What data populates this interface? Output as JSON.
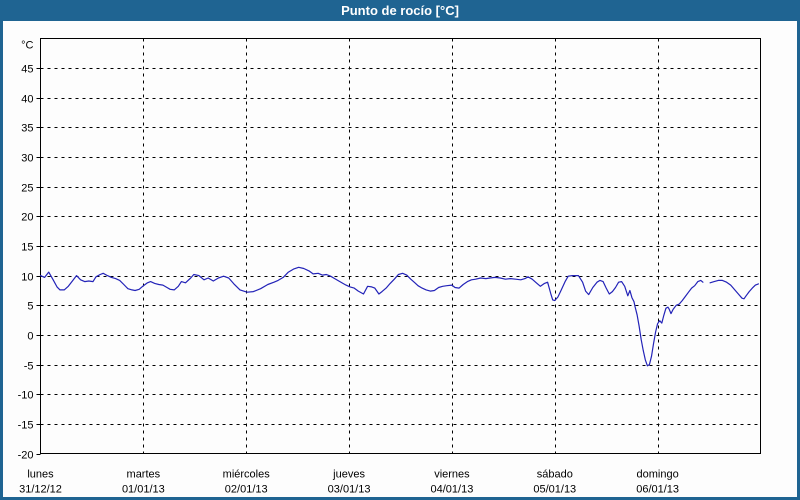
{
  "title_bar": {
    "title": "Punto de rocío [°C]",
    "bg_color": "#1f6492",
    "text_color": "#ffffff"
  },
  "chart_data": {
    "type": "line",
    "title": "Punto de rocío [°C]",
    "grid": {
      "style": "dashed",
      "color": "#000000",
      "visible": true
    },
    "legend": "none",
    "y_axis": {
      "unit_label": "°C",
      "min": -20,
      "max": 50,
      "tick_step": 5,
      "tick_labels": [
        45,
        40,
        35,
        30,
        25,
        20,
        15,
        10,
        5,
        0,
        -5,
        -10,
        -15,
        -20
      ]
    },
    "x_axis": {
      "span_days": 7,
      "days": [
        {
          "name": "lunes",
          "date": "31/12/12"
        },
        {
          "name": "martes",
          "date": "01/01/13"
        },
        {
          "name": "miércoles",
          "date": "02/01/13"
        },
        {
          "name": "jueves",
          "date": "03/01/13"
        },
        {
          "name": "viernes",
          "date": "04/01/13"
        },
        {
          "name": "sábado",
          "date": "05/01/13"
        },
        {
          "name": "domingo",
          "date": "06/01/13"
        }
      ]
    },
    "series": [
      {
        "name": "Punto de rocío",
        "unit": "°C",
        "color": "#2323b8",
        "x_unit": "days since 31/12/12 00:00",
        "segments": [
          [
            [
              0.0,
              10.0
            ],
            [
              0.04,
              9.7
            ],
            [
              0.08,
              10.6
            ],
            [
              0.12,
              9.4
            ],
            [
              0.16,
              8.1
            ],
            [
              0.19,
              7.6
            ],
            [
              0.23,
              7.6
            ],
            [
              0.27,
              8.2
            ],
            [
              0.31,
              9.1
            ],
            [
              0.35,
              10.0
            ],
            [
              0.39,
              9.3
            ],
            [
              0.43,
              9.0
            ],
            [
              0.47,
              9.1
            ],
            [
              0.51,
              9.0
            ],
            [
              0.54,
              9.8
            ],
            [
              0.58,
              10.2
            ],
            [
              0.61,
              10.4
            ],
            [
              0.65,
              10.0
            ],
            [
              0.69,
              9.7
            ],
            [
              0.73,
              9.5
            ],
            [
              0.77,
              9.2
            ],
            [
              0.81,
              8.5
            ],
            [
              0.85,
              7.8
            ],
            [
              0.89,
              7.6
            ],
            [
              0.92,
              7.5
            ],
            [
              0.96,
              7.7
            ],
            [
              1.0,
              8.3
            ],
            [
              1.04,
              8.8
            ],
            [
              1.07,
              9.0
            ],
            [
              1.11,
              8.7
            ],
            [
              1.15,
              8.5
            ],
            [
              1.19,
              8.4
            ],
            [
              1.23,
              8.0
            ],
            [
              1.26,
              7.7
            ],
            [
              1.3,
              7.6
            ],
            [
              1.34,
              8.2
            ],
            [
              1.37,
              9.0
            ],
            [
              1.41,
              8.8
            ],
            [
              1.46,
              9.6
            ],
            [
              1.49,
              10.2
            ],
            [
              1.54,
              10.0
            ],
            [
              1.59,
              9.3
            ],
            [
              1.63,
              9.6
            ],
            [
              1.68,
              9.1
            ],
            [
              1.73,
              9.6
            ],
            [
              1.78,
              9.9
            ],
            [
              1.83,
              9.6
            ],
            [
              1.88,
              8.6
            ],
            [
              1.94,
              7.6
            ],
            [
              2.01,
              7.2
            ],
            [
              2.07,
              7.3
            ],
            [
              2.14,
              7.8
            ],
            [
              2.21,
              8.5
            ],
            [
              2.27,
              8.9
            ],
            [
              2.31,
              9.2
            ],
            [
              2.36,
              9.7
            ],
            [
              2.41,
              10.6
            ],
            [
              2.46,
              11.1
            ],
            [
              2.51,
              11.4
            ],
            [
              2.56,
              11.2
            ],
            [
              2.61,
              10.8
            ],
            [
              2.65,
              10.3
            ],
            [
              2.7,
              10.4
            ],
            [
              2.74,
              10.1
            ],
            [
              2.78,
              10.2
            ],
            [
              2.82,
              9.9
            ],
            [
              2.86,
              9.5
            ],
            [
              2.9,
              9.1
            ],
            [
              2.94,
              8.7
            ],
            [
              2.97,
              8.4
            ],
            [
              3.01,
              8.1
            ],
            [
              3.05,
              7.9
            ],
            [
              3.09,
              7.4
            ],
            [
              3.14,
              6.9
            ],
            [
              3.18,
              8.2
            ],
            [
              3.22,
              8.1
            ],
            [
              3.25,
              7.9
            ],
            [
              3.29,
              6.9
            ],
            [
              3.32,
              7.3
            ],
            [
              3.36,
              7.9
            ],
            [
              3.4,
              8.7
            ],
            [
              3.44,
              9.4
            ],
            [
              3.48,
              10.2
            ],
            [
              3.52,
              10.4
            ],
            [
              3.56,
              10.1
            ],
            [
              3.6,
              9.4
            ],
            [
              3.64,
              8.8
            ],
            [
              3.67,
              8.3
            ],
            [
              3.71,
              7.9
            ],
            [
              3.75,
              7.6
            ],
            [
              3.79,
              7.4
            ],
            [
              3.83,
              7.5
            ],
            [
              3.87,
              8.0
            ],
            [
              3.91,
              8.2
            ],
            [
              3.95,
              8.3
            ],
            [
              4.0,
              8.4
            ],
            [
              4.03,
              8.0
            ],
            [
              4.07,
              7.9
            ],
            [
              4.11,
              8.5
            ],
            [
              4.15,
              9.0
            ],
            [
              4.19,
              9.3
            ],
            [
              4.23,
              9.4
            ],
            [
              4.28,
              9.6
            ],
            [
              4.33,
              9.5
            ],
            [
              4.37,
              9.6
            ],
            [
              4.42,
              9.7
            ],
            [
              4.47,
              9.6
            ],
            [
              4.52,
              9.4
            ],
            [
              4.57,
              9.5
            ],
            [
              4.62,
              9.4
            ],
            [
              4.67,
              9.3
            ],
            [
              4.71,
              9.5
            ],
            [
              4.74,
              9.8
            ],
            [
              4.78,
              9.4
            ],
            [
              4.82,
              8.8
            ],
            [
              4.86,
              8.2
            ],
            [
              4.9,
              8.7
            ],
            [
              4.93,
              8.9
            ],
            [
              4.96,
              7.0
            ],
            [
              4.98,
              5.9
            ],
            [
              5.0,
              5.8
            ],
            [
              5.03,
              6.4
            ],
            [
              5.06,
              7.5
            ],
            [
              5.1,
              9.0
            ],
            [
              5.13,
              9.9
            ],
            [
              5.17,
              10.0
            ],
            [
              5.23,
              10.0
            ],
            [
              5.27,
              8.9
            ],
            [
              5.3,
              7.4
            ],
            [
              5.33,
              6.8
            ],
            [
              5.37,
              8.0
            ],
            [
              5.41,
              8.9
            ],
            [
              5.44,
              9.2
            ],
            [
              5.47,
              9.0
            ],
            [
              5.5,
              7.9
            ],
            [
              5.53,
              6.9
            ],
            [
              5.56,
              7.3
            ],
            [
              5.59,
              8.0
            ],
            [
              5.62,
              8.9
            ],
            [
              5.65,
              9.0
            ],
            [
              5.68,
              8.2
            ],
            [
              5.71,
              6.6
            ],
            [
              5.73,
              7.5
            ],
            [
              5.75,
              6.3
            ],
            [
              5.77,
              5.6
            ],
            [
              5.78,
              4.8
            ],
            [
              5.8,
              3.4
            ],
            [
              5.82,
              1.5
            ],
            [
              5.84,
              -0.8
            ],
            [
              5.86,
              -2.6
            ],
            [
              5.88,
              -4.2
            ],
            [
              5.9,
              -5.2
            ],
            [
              5.92,
              -5.0
            ],
            [
              5.94,
              -3.6
            ],
            [
              5.96,
              -1.5
            ],
            [
              5.98,
              0.5
            ],
            [
              6.0,
              1.9
            ],
            [
              6.02,
              2.4
            ],
            [
              6.04,
              2.0
            ],
            [
              6.06,
              3.3
            ],
            [
              6.08,
              4.5
            ],
            [
              6.1,
              4.7
            ],
            [
              6.11,
              4.4
            ],
            [
              6.13,
              3.6
            ],
            [
              6.15,
              4.3
            ],
            [
              6.18,
              5.0
            ],
            [
              6.21,
              5.2
            ],
            [
              6.24,
              5.8
            ],
            [
              6.27,
              6.5
            ],
            [
              6.3,
              7.2
            ],
            [
              6.33,
              7.9
            ],
            [
              6.36,
              8.3
            ],
            [
              6.39,
              9.0
            ],
            [
              6.42,
              9.2
            ],
            [
              6.44,
              8.9
            ]
          ],
          [
            [
              6.51,
              8.8
            ],
            [
              6.55,
              9.0
            ],
            [
              6.59,
              9.2
            ],
            [
              6.63,
              9.2
            ],
            [
              6.67,
              8.9
            ],
            [
              6.71,
              8.4
            ],
            [
              6.75,
              7.6
            ],
            [
              6.79,
              6.8
            ],
            [
              6.82,
              6.2
            ],
            [
              6.84,
              6.1
            ],
            [
              6.86,
              6.6
            ],
            [
              6.89,
              7.3
            ],
            [
              6.92,
              7.9
            ],
            [
              6.95,
              8.4
            ],
            [
              6.98,
              8.6
            ]
          ]
        ]
      }
    ]
  }
}
